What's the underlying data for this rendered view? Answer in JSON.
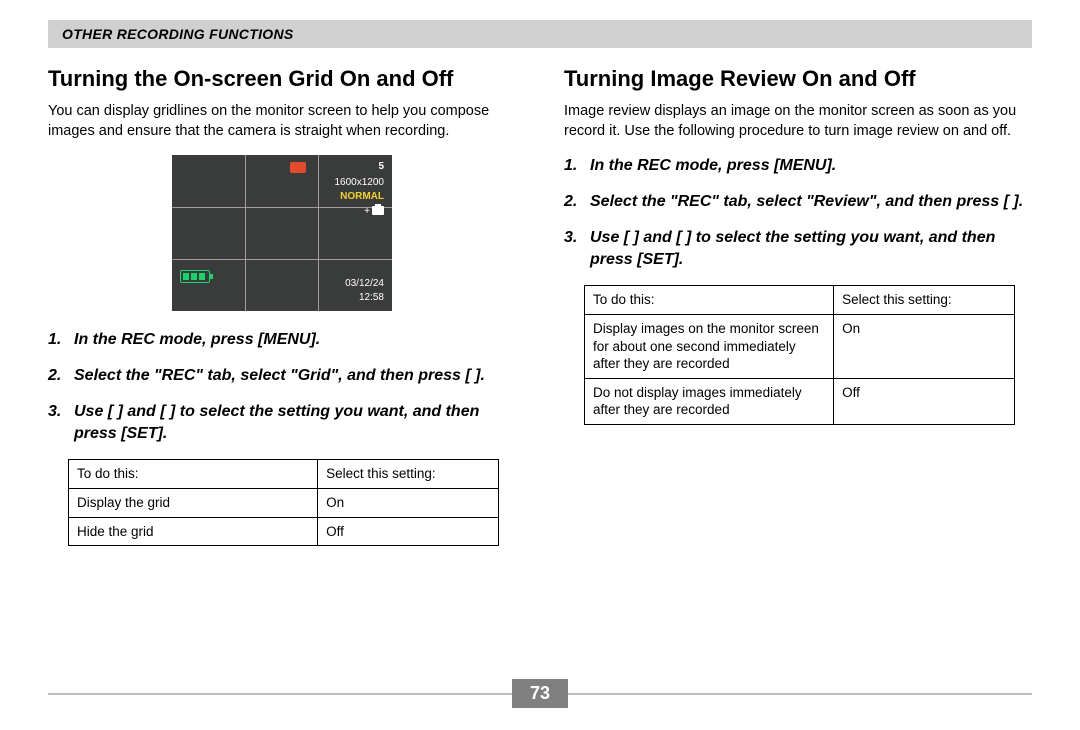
{
  "header": {
    "label": "OTHER RECORDING FUNCTIONS"
  },
  "left": {
    "title": "Turning the On-screen Grid On and Off",
    "lead": "You can display gridlines on the monitor screen to help you compose images and ensure that the camera is straight when recording.",
    "screen": {
      "count": "5",
      "resolution": "1600x1200",
      "quality": "NORMAL",
      "date": "03/12/24",
      "time": "12:58"
    },
    "steps": [
      "In the REC mode, press [MENU].",
      "Select the \"REC\" tab, select \"Grid\", and then press [   ].",
      "Use [   ] and [   ] to select the setting you want, and then press [SET]."
    ],
    "table": {
      "headers": [
        "To do this:",
        "Select this setting:"
      ],
      "rows": [
        [
          "Display the grid",
          "On"
        ],
        [
          "Hide the grid",
          "Off"
        ]
      ]
    }
  },
  "right": {
    "title": "Turning Image Review On and Off",
    "lead": "Image review displays an image on the monitor screen as soon as you record it. Use the following procedure to turn image review on and off.",
    "steps": [
      "In the REC mode, press [MENU].",
      "Select the \"REC\" tab, select \"Review\", and then press [   ].",
      "Use [   ] and [   ] to select the setting you want, and then press [SET]."
    ],
    "table": {
      "headers": [
        "To do this:",
        "Select this setting:"
      ],
      "rows": [
        [
          "Display images on the monitor screen for about one second immediately after they are recorded",
          "On"
        ],
        [
          "Do not display images immediately after they are recorded",
          "Off"
        ]
      ]
    }
  },
  "page_number": "73",
  "colors": {
    "header_band": "#d0d0d0",
    "page_box": "#808080",
    "rule": "#bdbdbd",
    "screen_bg": "#3a3c3b",
    "screen_grid": "#9e9e9e",
    "screen_quality": "#f0d030",
    "screen_battery": "#1bd36e",
    "screen_rec": "#e24b2b"
  }
}
